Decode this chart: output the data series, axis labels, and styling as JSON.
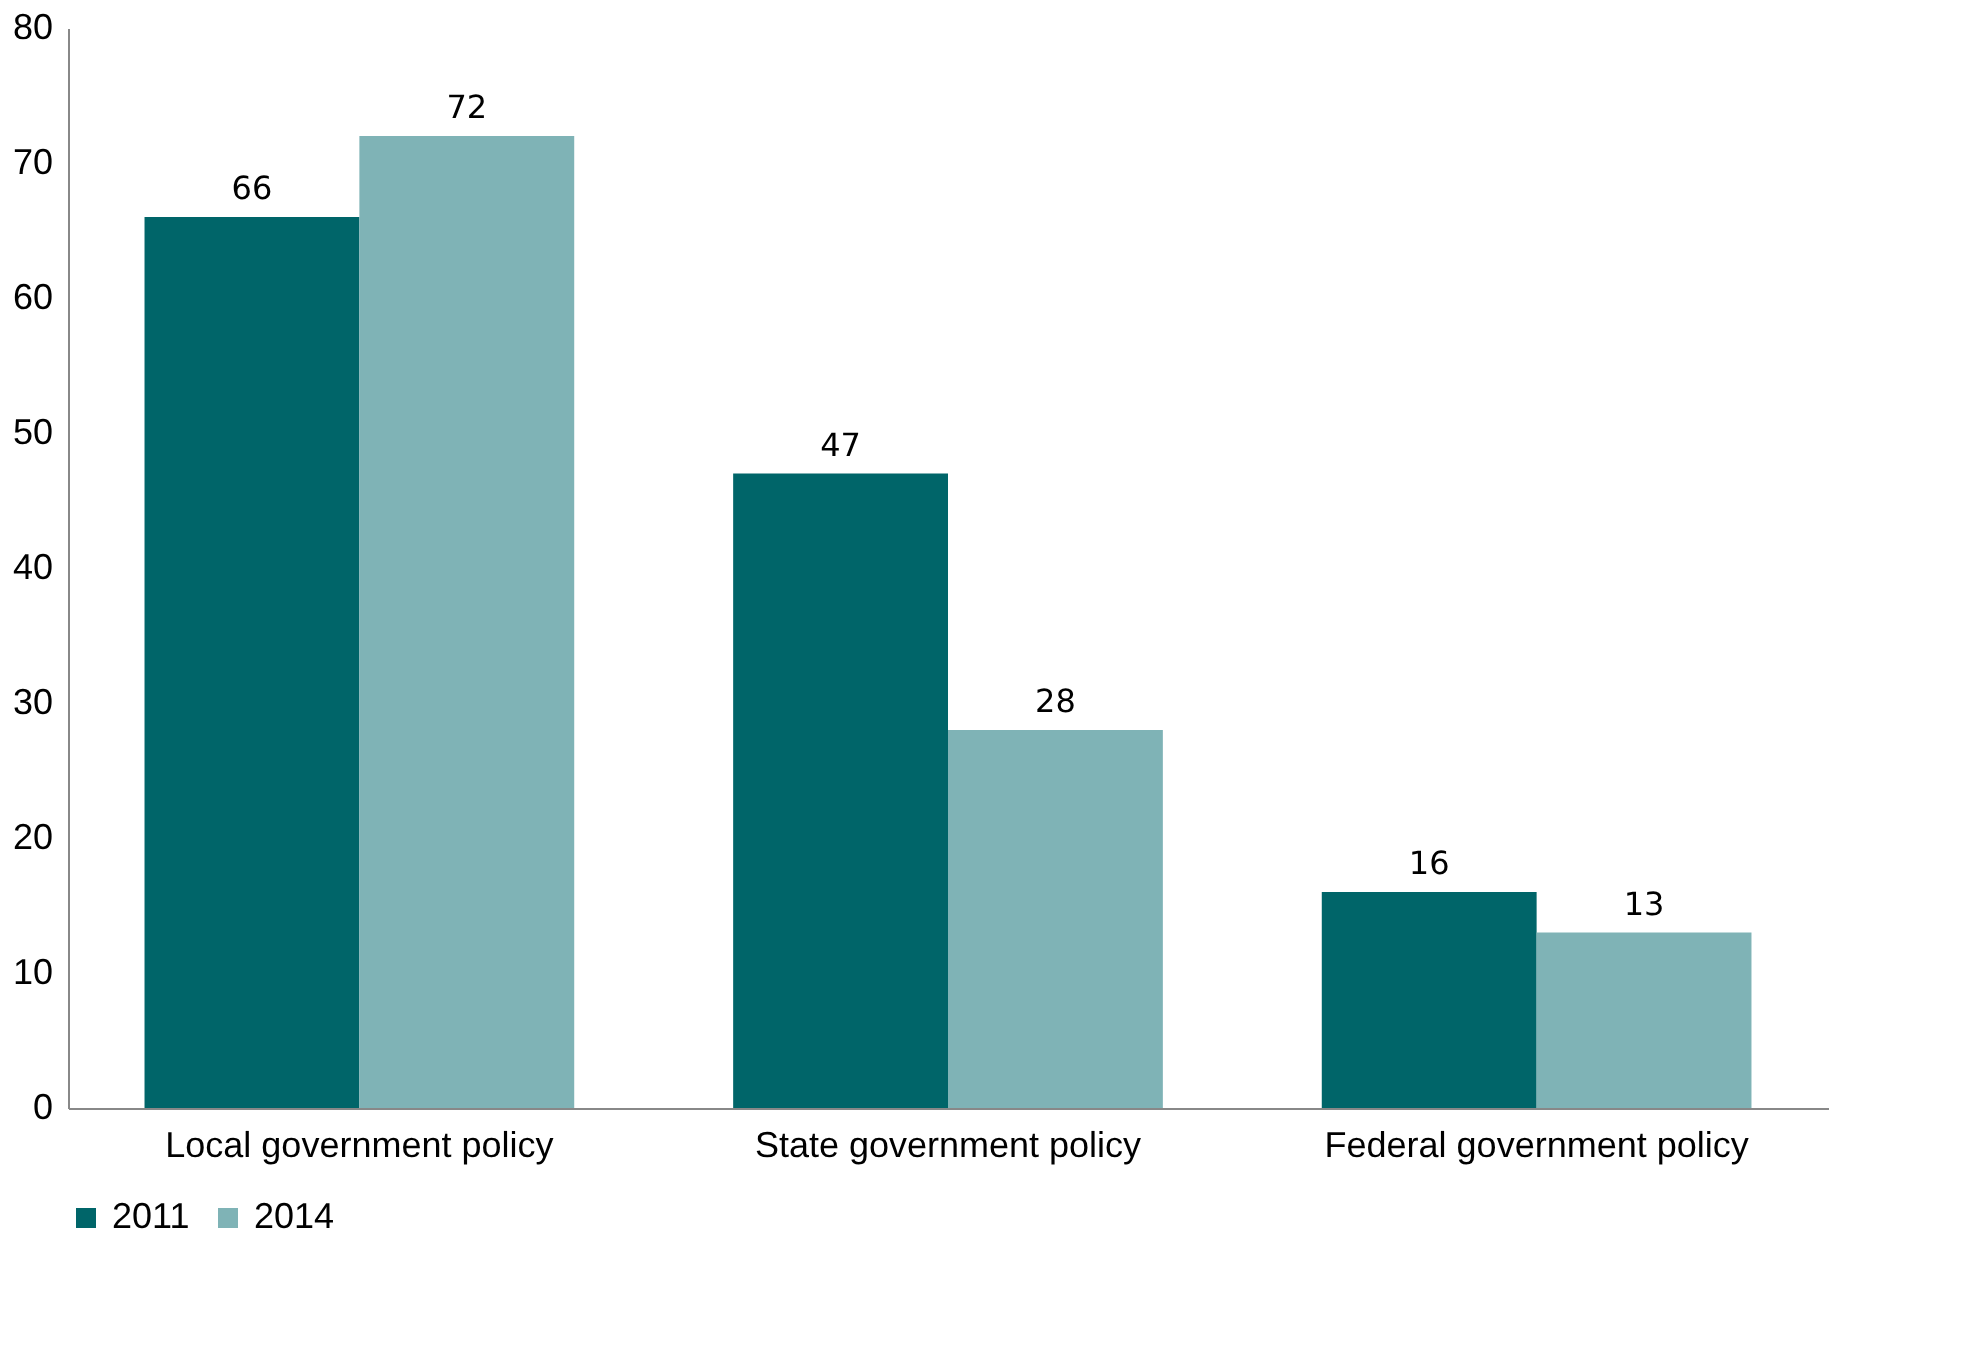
{
  "chart_data": {
    "type": "bar",
    "categories": [
      "Local government policy",
      "State government policy",
      "Federal government policy"
    ],
    "series": [
      {
        "name": "2011",
        "color": "#006569",
        "values": [
          66,
          47,
          16
        ]
      },
      {
        "name": "2014",
        "color": "#7fb3b6",
        "values": [
          72,
          28,
          13
        ]
      }
    ],
    "ylim": [
      0,
      80
    ],
    "yticks": [
      0,
      10,
      20,
      30,
      40,
      50,
      60,
      70,
      80
    ],
    "grid": false,
    "legend": "bottom",
    "data_labels": true
  }
}
